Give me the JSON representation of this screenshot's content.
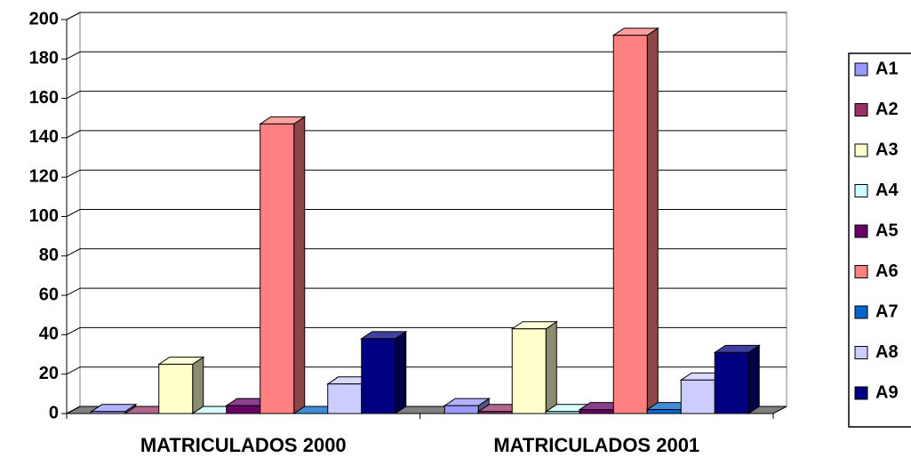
{
  "chart_data": {
    "type": "bar3d",
    "categories": [
      "MATRICULADOS 2000",
      "MATRICULADOS 2001"
    ],
    "series": [
      {
        "name": "A1",
        "color": "#9999ff",
        "values": [
          1,
          4
        ]
      },
      {
        "name": "A2",
        "color": "#993366",
        "values": [
          0,
          1
        ]
      },
      {
        "name": "A3",
        "color": "#ffffcc",
        "values": [
          25,
          43
        ]
      },
      {
        "name": "A4",
        "color": "#ccffff",
        "values": [
          0,
          1
        ]
      },
      {
        "name": "A5",
        "color": "#660066",
        "values": [
          4,
          2
        ]
      },
      {
        "name": "A6",
        "color": "#ff8080",
        "values": [
          147,
          192
        ]
      },
      {
        "name": "A7",
        "color": "#0066cc",
        "values": [
          0,
          2
        ]
      },
      {
        "name": "A8",
        "color": "#ccccff",
        "values": [
          15,
          17
        ]
      },
      {
        "name": "A9",
        "color": "#000080",
        "values": [
          38,
          31
        ]
      }
    ],
    "ylim": [
      0,
      200
    ],
    "yticks": [
      0,
      20,
      40,
      60,
      80,
      100,
      120,
      140,
      160,
      180,
      200
    ],
    "grid": true,
    "legend": "right"
  }
}
